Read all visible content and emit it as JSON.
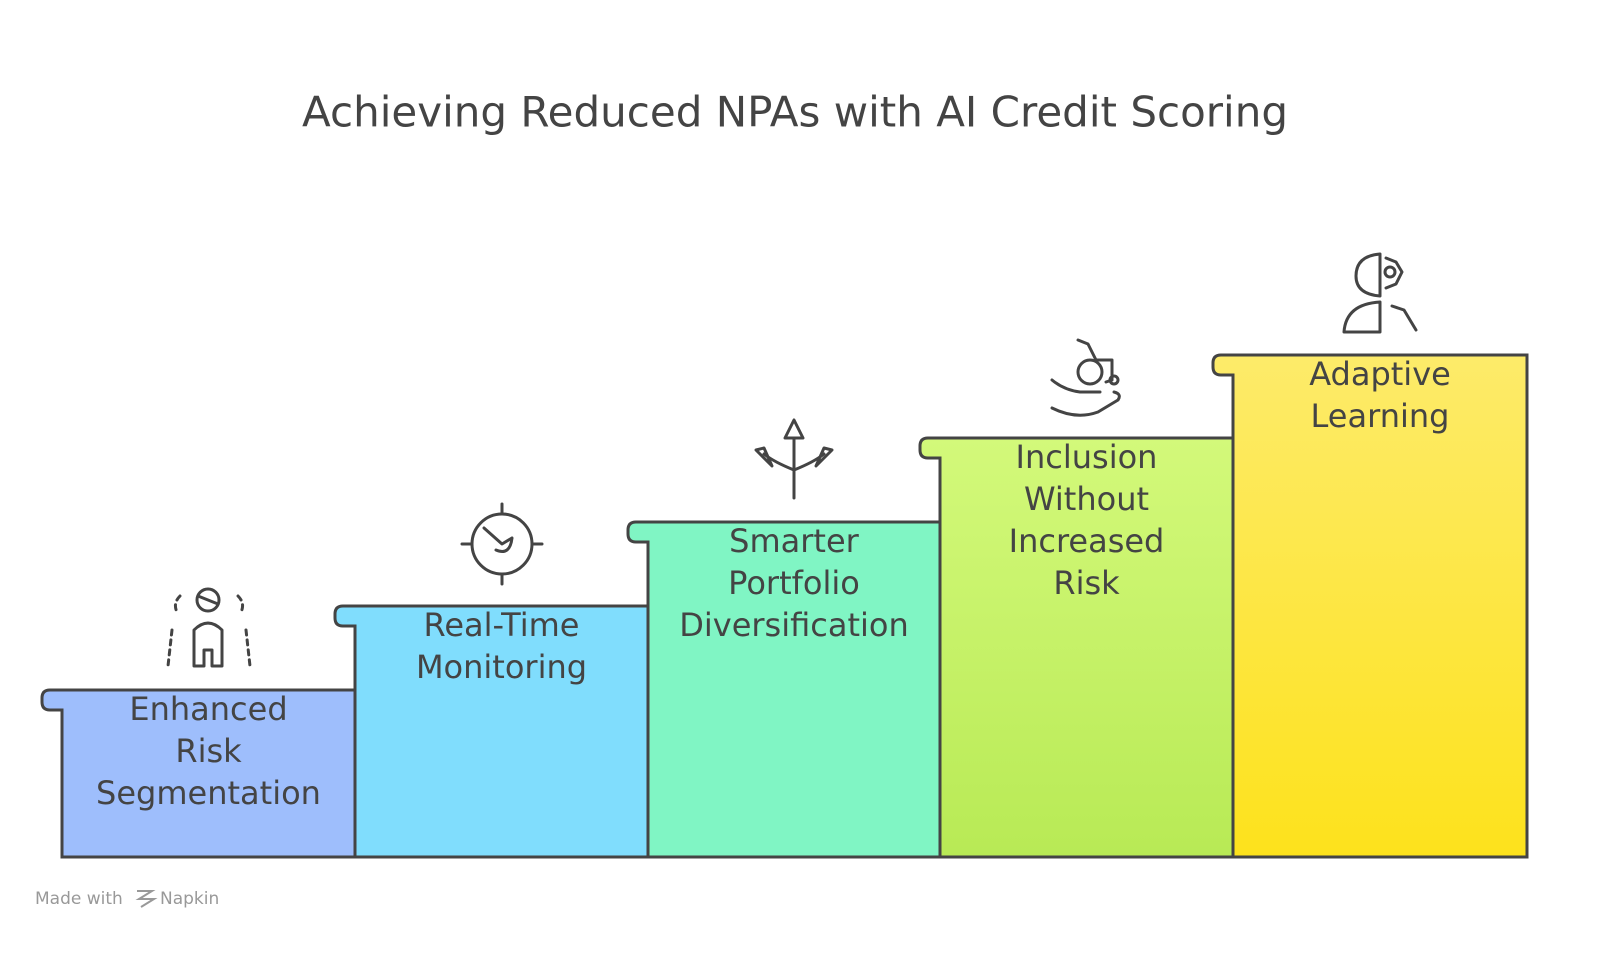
{
  "title": "Achieving Reduced NPAs with AI Credit Scoring",
  "steps": [
    {
      "lines": [
        "Enhanced",
        "Risk",
        "Segmentation"
      ]
    },
    {
      "lines": [
        "Real-Time",
        "Monitoring"
      ]
    },
    {
      "lines": [
        "Smarter",
        "Portfolio",
        "Diversification"
      ]
    },
    {
      "lines": [
        "Inclusion",
        "Without",
        "Increased",
        "Risk"
      ]
    },
    {
      "lines": [
        "Adaptive",
        "Learning"
      ]
    }
  ],
  "footer": {
    "prefix": "Made with",
    "brand": "Napkin"
  }
}
